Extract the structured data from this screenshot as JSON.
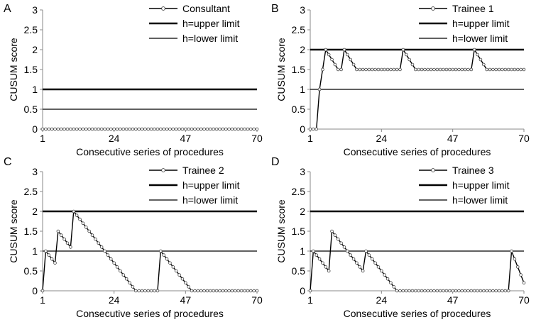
{
  "chart_data": [
    {
      "type": "line",
      "panel_label": "A",
      "xlabel": "Consecutive series of procedures",
      "ylabel": "CUSUM score",
      "ylim": [
        0,
        3
      ],
      "yticks": [
        "0",
        "0.5",
        "1",
        "1.5",
        "2",
        "2.5",
        "3"
      ],
      "xlim": [
        1,
        70
      ],
      "xticks": [
        "1",
        "24",
        "47",
        "70"
      ],
      "upper_limit": 1,
      "lower_limit": 0.5,
      "legend": [
        "Consultant",
        "h=upper limit",
        "h=lower limit"
      ],
      "series": [
        {
          "name": "Consultant",
          "keypoints": [
            [
              1,
              0
            ],
            [
              70,
              0
            ]
          ]
        }
      ]
    },
    {
      "type": "line",
      "panel_label": "B",
      "xlabel": "Consecutive series of procedures",
      "ylabel": "CUSUM score",
      "ylim": [
        0,
        3
      ],
      "yticks": [
        "0",
        "0.5",
        "1",
        "1.5",
        "2",
        "2.5",
        "3"
      ],
      "xlim": [
        1,
        70
      ],
      "xticks": [
        "1",
        "24",
        "47",
        "70"
      ],
      "upper_limit": 2,
      "lower_limit": 1,
      "legend": [
        "Trainee 1",
        "h=upper limit",
        "h=lower limit"
      ],
      "series": [
        {
          "name": "Trainee 1",
          "keypoints": [
            [
              1,
              0
            ],
            [
              3,
              0
            ],
            [
              4,
              1
            ],
            [
              5,
              1.5
            ],
            [
              6,
              2
            ],
            [
              10,
              1.5
            ],
            [
              11,
              1.5
            ],
            [
              12,
              2
            ],
            [
              16,
              1.5
            ],
            [
              30,
              1.5
            ],
            [
              31,
              2
            ],
            [
              35,
              1.5
            ],
            [
              53,
              1.5
            ],
            [
              54,
              2
            ],
            [
              58,
              1.5
            ],
            [
              70,
              1.5
            ]
          ]
        }
      ]
    },
    {
      "type": "line",
      "panel_label": "C",
      "xlabel": "Consecutive series of procedures",
      "ylabel": "CUSUM score",
      "ylim": [
        0,
        3
      ],
      "yticks": [
        "0",
        "0.5",
        "1",
        "1.5",
        "2",
        "2.5",
        "3"
      ],
      "xlim": [
        1,
        70
      ],
      "xticks": [
        "1",
        "24",
        "47",
        "70"
      ],
      "upper_limit": 2,
      "lower_limit": 1,
      "legend": [
        "Trainee 2",
        "h=upper limit",
        "h=lower limit"
      ],
      "series": [
        {
          "name": "Trainee 2",
          "keypoints": [
            [
              1,
              0
            ],
            [
              2,
              1
            ],
            [
              5,
              0.7
            ],
            [
              6,
              1.5
            ],
            [
              10,
              1.1
            ],
            [
              11,
              2
            ],
            [
              31,
              0
            ],
            [
              38,
              0
            ],
            [
              39,
              1
            ],
            [
              49,
              0
            ],
            [
              70,
              0
            ]
          ]
        }
      ]
    },
    {
      "type": "line",
      "panel_label": "D",
      "xlabel": "Consecutive series of procedures",
      "ylabel": "CUSUM score",
      "ylim": [
        0,
        3
      ],
      "yticks": [
        "0",
        "0.5",
        "1",
        "1.5",
        "2",
        "2.5",
        "3"
      ],
      "xlim": [
        1,
        70
      ],
      "xticks": [
        "1",
        "24",
        "47",
        "70"
      ],
      "upper_limit": 2,
      "lower_limit": 1,
      "legend": [
        "Trainee 3",
        "h=upper limit",
        "h=lower limit"
      ],
      "series": [
        {
          "name": "Trainee 3",
          "keypoints": [
            [
              1,
              0
            ],
            [
              2,
              1
            ],
            [
              7,
              0.5
            ],
            [
              8,
              1.5
            ],
            [
              18,
              0.5
            ],
            [
              19,
              1
            ],
            [
              29,
              0
            ],
            [
              65,
              0
            ],
            [
              66,
              1
            ],
            [
              70,
              0.2
            ]
          ]
        }
      ]
    }
  ]
}
